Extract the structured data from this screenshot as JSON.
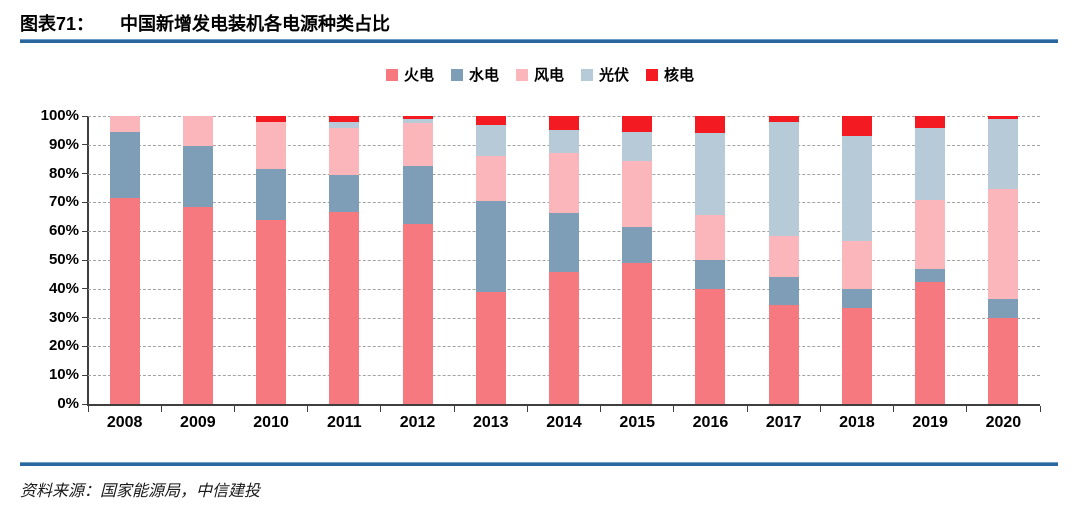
{
  "figure": {
    "label": "图表71：",
    "title": "中国新增发电装机各电源种类占比"
  },
  "source": {
    "text": "资料来源：国家能源局，中信建投"
  },
  "colors": {
    "rule_blue": "#2B679F",
    "axis": "#3F3F3F",
    "gridline": "#A3A3A3",
    "thermal": "#F5797E",
    "hydro": "#7E9EB8",
    "wind": "#FAB6BA",
    "solar": "#B7CAD8",
    "nuclear": "#F41A22"
  },
  "chart_data": {
    "type": "bar",
    "stacked": true,
    "unit": "%",
    "title": "中国新增发电装机各电源种类占比",
    "categories": [
      "2008",
      "2009",
      "2010",
      "2011",
      "2012",
      "2013",
      "2014",
      "2015",
      "2016",
      "2017",
      "2018",
      "2019",
      "2020"
    ],
    "series": [
      {
        "name": "火电",
        "color": "#F5797E",
        "values": [
          71.5,
          68.5,
          64.0,
          66.5,
          62.5,
          39.0,
          46.0,
          49.0,
          40.0,
          34.5,
          33.5,
          42.5,
          30.0
        ]
      },
      {
        "name": "水电",
        "color": "#7E9EB8",
        "values": [
          23.0,
          21.0,
          17.5,
          13.0,
          20.0,
          31.5,
          20.5,
          12.5,
          10.0,
          9.5,
          6.5,
          4.5,
          6.5
        ]
      },
      {
        "name": "风电",
        "color": "#FAB6BA",
        "values": [
          5.5,
          10.5,
          16.5,
          16.5,
          15.0,
          15.5,
          20.5,
          23.0,
          15.5,
          14.5,
          16.5,
          24.0,
          38.0
        ]
      },
      {
        "name": "光伏",
        "color": "#B7CAD8",
        "values": [
          0.0,
          0.0,
          0.0,
          2.0,
          1.5,
          11.0,
          8.0,
          10.0,
          28.5,
          39.5,
          36.5,
          25.0,
          24.5
        ]
      },
      {
        "name": "核电",
        "color": "#F41A22",
        "values": [
          0.0,
          0.0,
          2.0,
          2.0,
          1.0,
          3.0,
          5.0,
          5.5,
          6.0,
          2.0,
          7.0,
          4.0,
          1.0
        ]
      }
    ],
    "ylim": [
      0,
      100
    ],
    "y_ticks": [
      "0%",
      "10%",
      "20%",
      "30%",
      "40%",
      "50%",
      "60%",
      "70%",
      "80%",
      "90%",
      "100%"
    ],
    "grid": "dashed-horizontal",
    "legend_position": "top-center",
    "xlabel": "",
    "ylabel": ""
  }
}
